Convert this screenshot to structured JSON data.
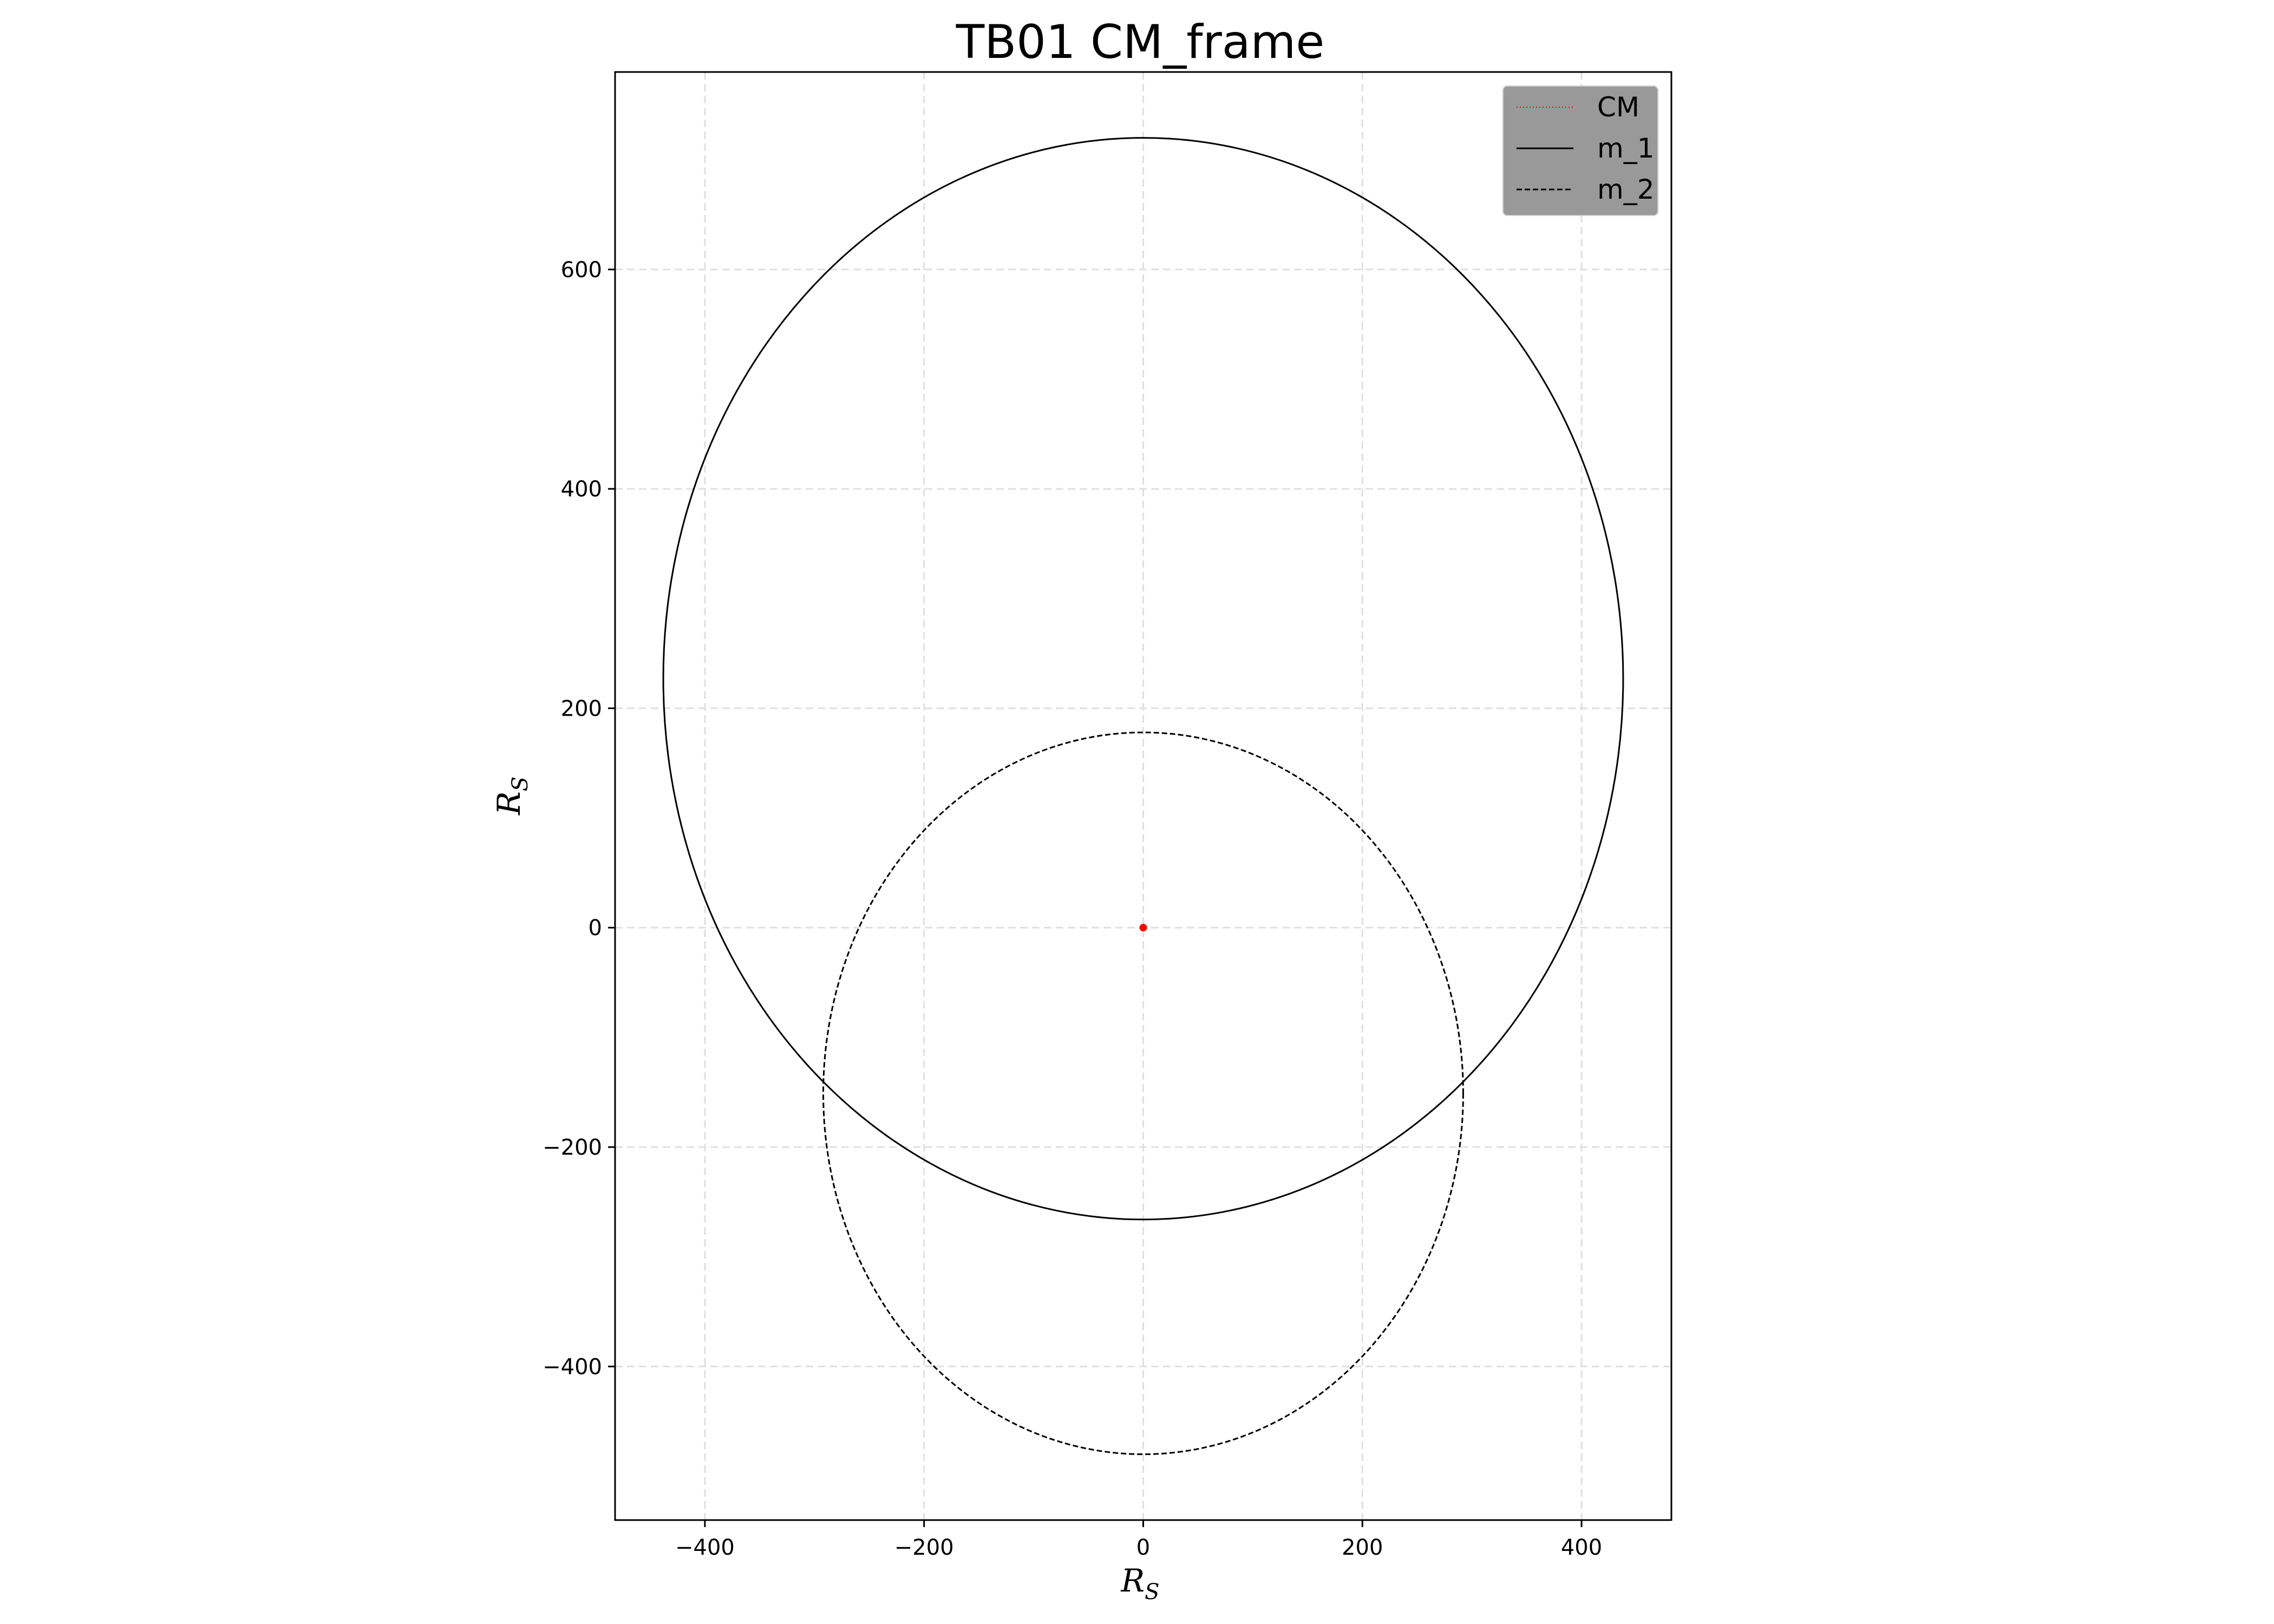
{
  "chart_data": {
    "type": "line",
    "title": "TB01 CM_frame",
    "xlabel_main": "R",
    "xlabel_sub": "S",
    "ylabel_main": "R",
    "ylabel_sub": "S",
    "xlim": [
      -482,
      482
    ],
    "ylim": [
      -540,
      780
    ],
    "xticks": [
      -400,
      -200,
      0,
      200,
      400
    ],
    "yticks": [
      -400,
      -200,
      0,
      200,
      400,
      600
    ],
    "xtick_labels": [
      "−400",
      "−200",
      "0",
      "200",
      "400"
    ],
    "ytick_labels": [
      "−400",
      "−200",
      "0",
      "200",
      "400",
      "600"
    ],
    "grid": true,
    "legend_position": "top-right",
    "series": [
      {
        "name": "CM",
        "style": "dotted",
        "color": "#ff0000",
        "kind": "point",
        "x": 0,
        "y": 0
      },
      {
        "name": "m_1",
        "style": "solid",
        "color": "#000000",
        "kind": "ellipse",
        "cx": 0,
        "cy": 227,
        "rx": 438,
        "ry": 493
      },
      {
        "name": "m_2",
        "style": "dashed",
        "color": "#000000",
        "kind": "ellipse",
        "cx": 0,
        "cy": -151,
        "rx": 292,
        "ry": 329
      }
    ]
  }
}
